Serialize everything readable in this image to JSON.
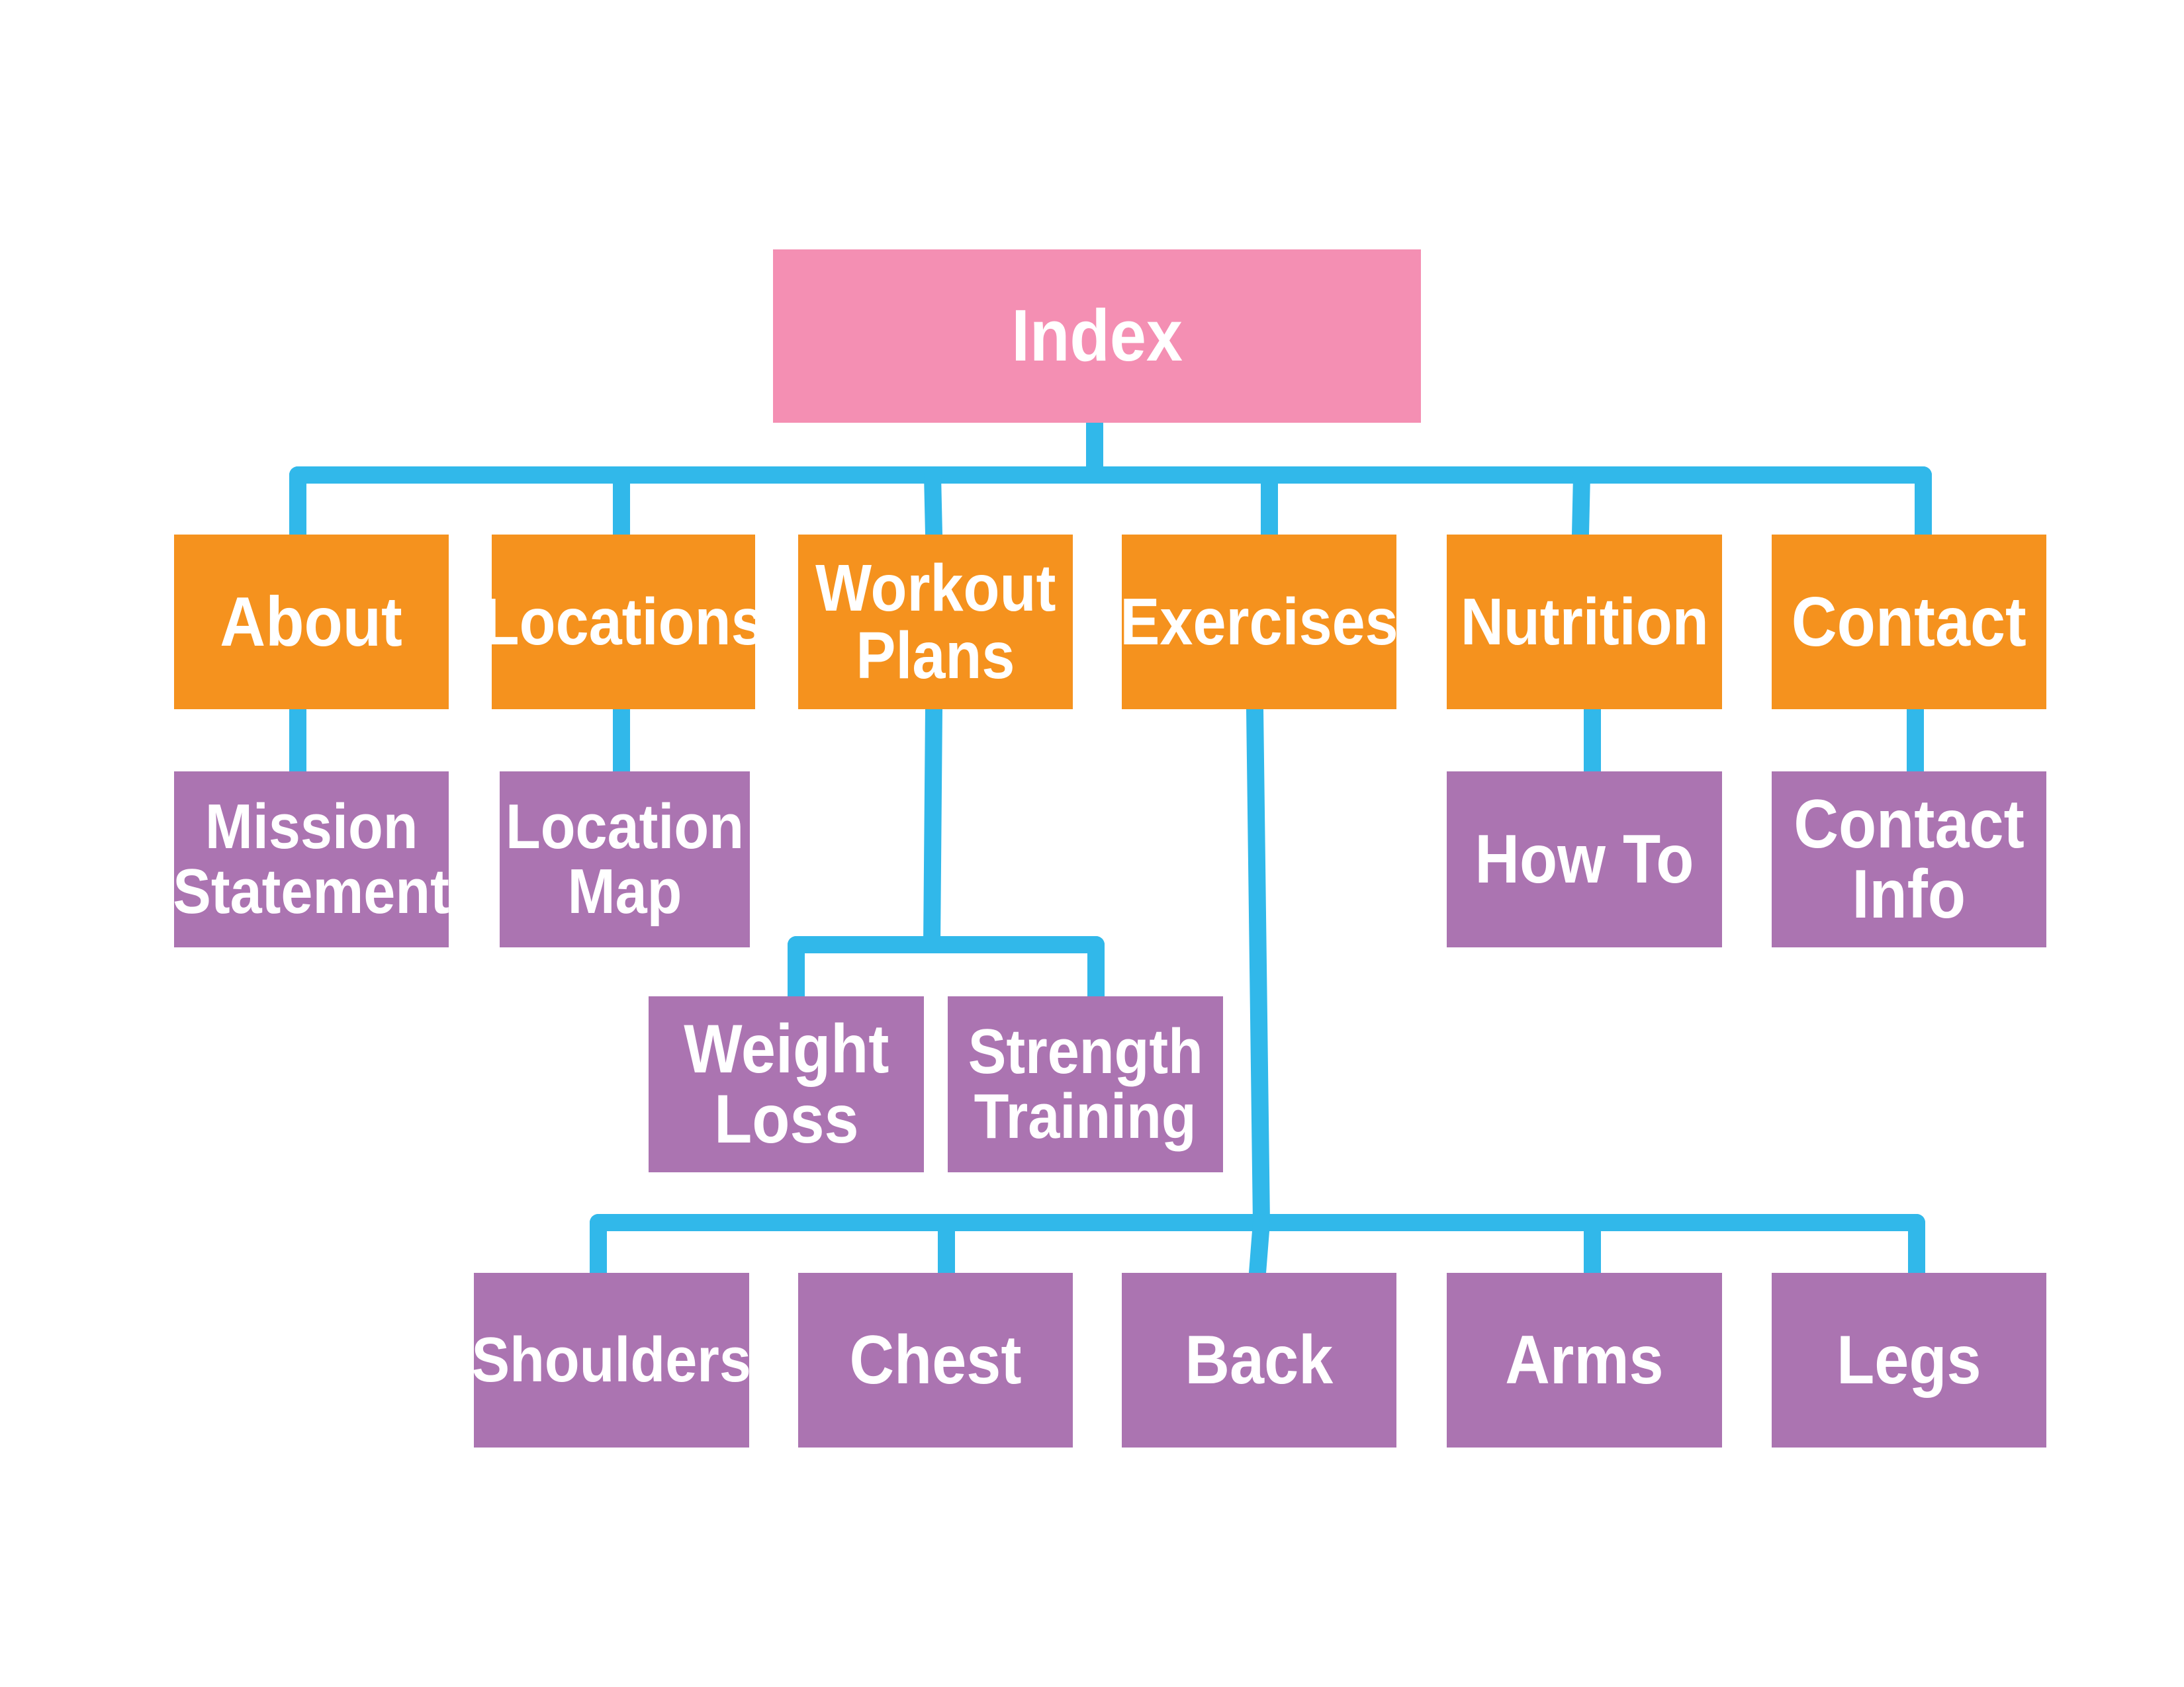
{
  "colors": {
    "root": "#f48fb3",
    "section": "#f5921e",
    "leaf": "#ab74b1",
    "connector": "#31b8ea",
    "text": "#ffffff"
  },
  "root": {
    "label": "Index"
  },
  "sections": [
    {
      "id": "about",
      "label": "About"
    },
    {
      "id": "locations",
      "label": "Locations"
    },
    {
      "id": "workout-plans",
      "lines": [
        "Workout",
        "Plans"
      ]
    },
    {
      "id": "exercises",
      "label": "Exercises"
    },
    {
      "id": "nutrition",
      "label": "Nutrition"
    },
    {
      "id": "contact",
      "label": "Contact"
    }
  ],
  "subpages": [
    {
      "id": "mission-statement",
      "parent": "about",
      "lines": [
        "Mission",
        "Statement"
      ]
    },
    {
      "id": "location-map",
      "parent": "locations",
      "lines": [
        "Location",
        "Map"
      ]
    },
    {
      "id": "weight-loss",
      "parent": "workout-plans",
      "lines": [
        "Weight",
        "Loss"
      ]
    },
    {
      "id": "strength-training",
      "parent": "workout-plans",
      "lines": [
        "Strength",
        "Training"
      ]
    },
    {
      "id": "how-to",
      "parent": "nutrition",
      "label": "How To"
    },
    {
      "id": "contact-info",
      "parent": "contact",
      "lines": [
        "Contact",
        "Info"
      ]
    },
    {
      "id": "shoulders",
      "parent": "exercises",
      "label": "Shoulders"
    },
    {
      "id": "chest",
      "parent": "exercises",
      "label": "Chest"
    },
    {
      "id": "back",
      "parent": "exercises",
      "label": "Back"
    },
    {
      "id": "arms",
      "parent": "exercises",
      "label": "Arms"
    },
    {
      "id": "legs",
      "parent": "exercises",
      "label": "Legs"
    }
  ]
}
